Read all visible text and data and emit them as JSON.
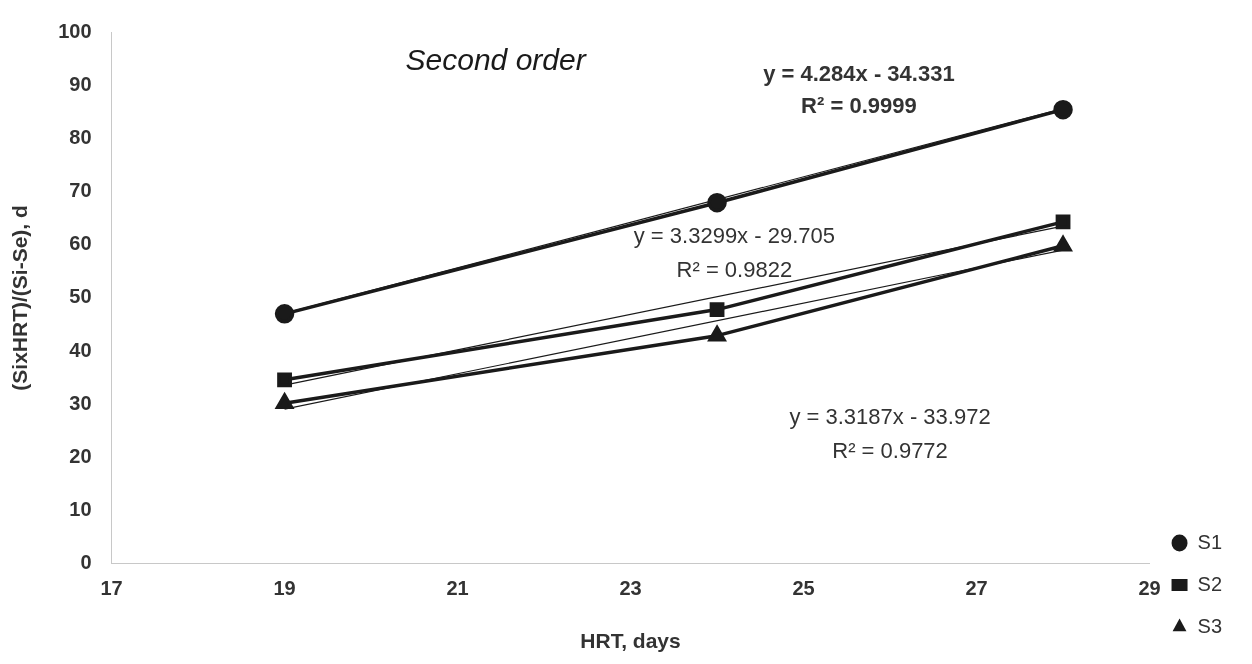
{
  "chart_data": {
    "type": "line",
    "title": "Second order",
    "xlabel": "HRT, days",
    "ylabel": "(SixHRT)/(Si-Se), d",
    "xlim": [
      17,
      29
    ],
    "xticks": [
      17,
      19,
      21,
      23,
      25,
      27,
      29
    ],
    "ylim": [
      0,
      100
    ],
    "yticks": [
      0,
      10,
      20,
      30,
      40,
      50,
      60,
      70,
      80,
      90,
      100
    ],
    "grid": false,
    "legend": "bottom right",
    "line_style": "solid",
    "series": [
      {
        "name": "S1",
        "color": "#1a1a1a",
        "x": [
          19,
          24,
          28
        ],
        "values": [
          47.0,
          67.9,
          85.4
        ],
        "marker": "circle"
      },
      {
        "name": "S2",
        "color": "#1a1a1a",
        "x": [
          19,
          24,
          28
        ],
        "values": [
          34.6,
          47.8,
          64.3
        ],
        "marker": "square"
      },
      {
        "name": "S3",
        "color": "#1a1a1a",
        "x": [
          19,
          24,
          28
        ],
        "values": [
          30.2,
          42.9,
          59.8
        ],
        "marker": "triangle"
      },
      {
        "type": "line",
        "color": "#1a1a1a",
        "x": [
          19,
          28
        ],
        "values": [
          47.1,
          85.6
        ],
        "marker": "none"
      },
      {
        "type": "line",
        "color": "#1a1a1a",
        "x": [
          19,
          28
        ],
        "values": [
          33.6,
          63.5
        ],
        "marker": "none"
      },
      {
        "type": "line",
        "color": "#1a1a1a",
        "x": [
          19,
          28
        ],
        "values": [
          29.1,
          59.0
        ],
        "marker": "none"
      }
    ],
    "annotations": [
      "y = 4.284x - 34.331",
      "R² = 0.9999",
      "y = 3.3299x - 29.705",
      "R² = 0.9822",
      "y = 3.3187x - 33.972",
      "R² = 0.9772"
    ]
  }
}
